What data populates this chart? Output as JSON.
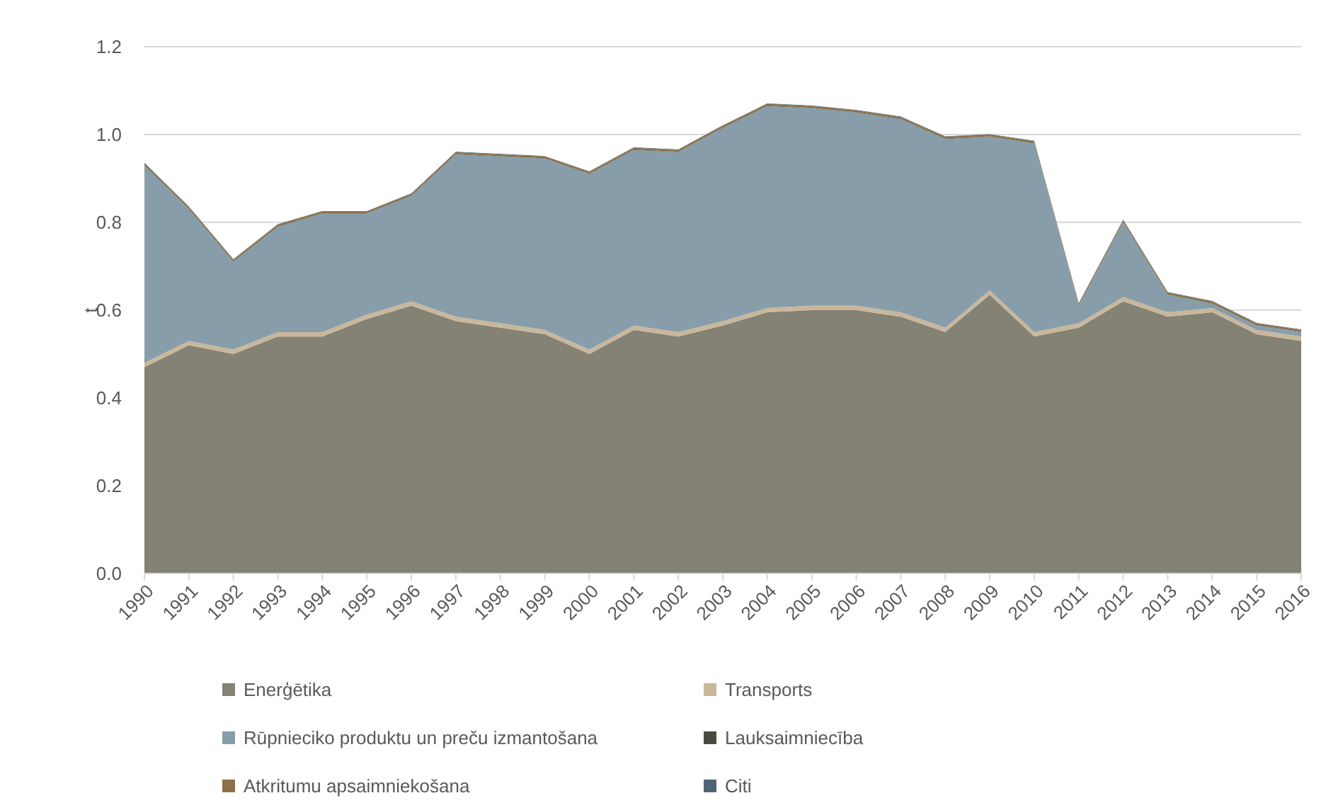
{
  "chart_data": {
    "type": "area",
    "stacked": true,
    "ylabel": "t",
    "grid": "y",
    "legend": "bottom",
    "categories": [
      "1990",
      "1991",
      "1992",
      "1993",
      "1994",
      "1995",
      "1996",
      "1997",
      "1998",
      "1999",
      "2000",
      "2001",
      "2002",
      "2003",
      "2004",
      "2005",
      "2006",
      "2007",
      "2008",
      "2009",
      "2010",
      "2011",
      "2012",
      "2013",
      "2014",
      "2015",
      "2016"
    ],
    "ylim": [
      0,
      1.2
    ],
    "yticks": [
      {
        "value": 0,
        "label": "0.0"
      },
      0.2,
      0.4,
      0.6,
      0.8,
      {
        "value": 1,
        "label": "1.0"
      },
      1.2
    ],
    "series": [
      {
        "name": "Enerģētika",
        "color": "#838274",
        "values": [
          0.47,
          0.52,
          0.5,
          0.54,
          0.54,
          0.58,
          0.61,
          0.575,
          0.56,
          0.545,
          0.5,
          0.555,
          0.54,
          0.565,
          0.595,
          0.6,
          0.6,
          0.585,
          0.55,
          0.635,
          0.54,
          0.56,
          0.62,
          0.585,
          0.595,
          0.545,
          0.53
        ]
      },
      {
        "name": "Transports",
        "color": "#c9b79c",
        "values": [
          0.01,
          0.01,
          0.01,
          0.01,
          0.01,
          0.01,
          0.01,
          0.01,
          0.01,
          0.01,
          0.01,
          0.01,
          0.01,
          0.01,
          0.01,
          0.01,
          0.01,
          0.01,
          0.01,
          0.01,
          0.01,
          0.01,
          0.01,
          0.01,
          0.01,
          0.01,
          0.01
        ]
      },
      {
        "name": "Rūpnieciko produktu un preču izmantošana",
        "color": "#879eaa",
        "values": [
          0.45,
          0.3,
          0.2,
          0.24,
          0.27,
          0.23,
          0.24,
          0.37,
          0.38,
          0.39,
          0.4,
          0.4,
          0.41,
          0.44,
          0.46,
          0.45,
          0.44,
          0.44,
          0.43,
          0.35,
          0.43,
          0.04,
          0.17,
          0.04,
          0.01,
          0.01,
          0.01
        ]
      },
      {
        "name": "Lauksaimniecība",
        "color": "#4a4a42",
        "values": [
          0.001,
          0.001,
          0.001,
          0.001,
          0.001,
          0.001,
          0.001,
          0.001,
          0.001,
          0.001,
          0.001,
          0.001,
          0.001,
          0.001,
          0.001,
          0.001,
          0.001,
          0.001,
          0.001,
          0.001,
          0.001,
          0.001,
          0.001,
          0.001,
          0.001,
          0.001,
          0.001
        ]
      },
      {
        "name": "Atkritumu apsaimniekošana",
        "color": "#8c7048",
        "values": [
          0.004,
          0.004,
          0.004,
          0.004,
          0.004,
          0.004,
          0.004,
          0.004,
          0.004,
          0.004,
          0.004,
          0.004,
          0.004,
          0.004,
          0.004,
          0.004,
          0.004,
          0.004,
          0.004,
          0.004,
          0.004,
          0.004,
          0.004,
          0.004,
          0.004,
          0.004,
          0.004
        ]
      },
      {
        "name": "Citi",
        "color": "#4e6575",
        "values": [
          0.001,
          0.001,
          0.001,
          0.001,
          0.001,
          0.001,
          0.001,
          0.001,
          0.001,
          0.001,
          0.001,
          0.001,
          0.001,
          0.001,
          0.001,
          0.001,
          0.001,
          0.001,
          0.001,
          0.001,
          0.001,
          0.001,
          0.001,
          0.001,
          0.001,
          0.001,
          0.001
        ]
      }
    ]
  }
}
